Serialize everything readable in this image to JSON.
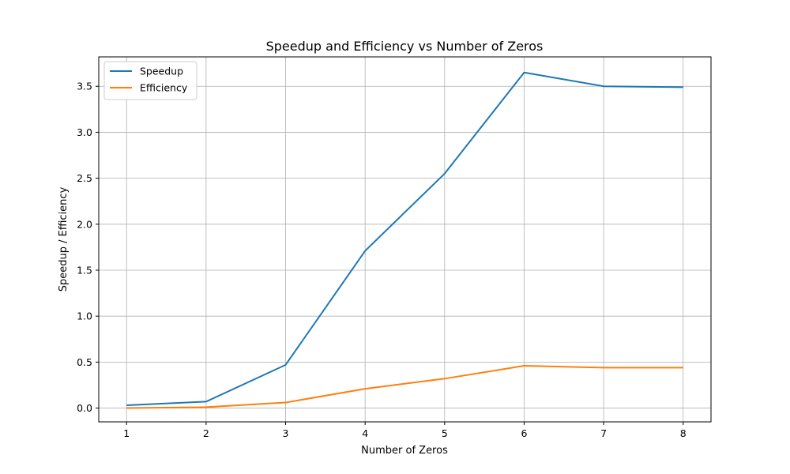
{
  "chart_data": {
    "type": "line",
    "title": "Speedup and Efficiency vs Number of Zeros",
    "xlabel": "Number of Zeros",
    "ylabel": "Speedup / Efficiency",
    "x": [
      1,
      2,
      3,
      4,
      5,
      6,
      7,
      8
    ],
    "xticks": [
      "1",
      "2",
      "3",
      "4",
      "5",
      "6",
      "7",
      "8"
    ],
    "yticks": [
      "0.0",
      "0.5",
      "1.0",
      "1.5",
      "2.0",
      "2.5",
      "3.0",
      "3.5"
    ],
    "xlim": [
      0.65,
      8.35
    ],
    "ylim": [
      -0.15,
      3.82
    ],
    "grid": true,
    "legend_position": "top-left",
    "series": [
      {
        "name": "Speedup",
        "color": "#1f77b4",
        "values": [
          0.03,
          0.07,
          0.47,
          1.71,
          2.55,
          3.65,
          3.5,
          3.49
        ]
      },
      {
        "name": "Efficiency",
        "color": "#ff7f0e",
        "values": [
          0.0,
          0.01,
          0.06,
          0.21,
          0.32,
          0.46,
          0.44,
          0.44
        ]
      }
    ]
  }
}
